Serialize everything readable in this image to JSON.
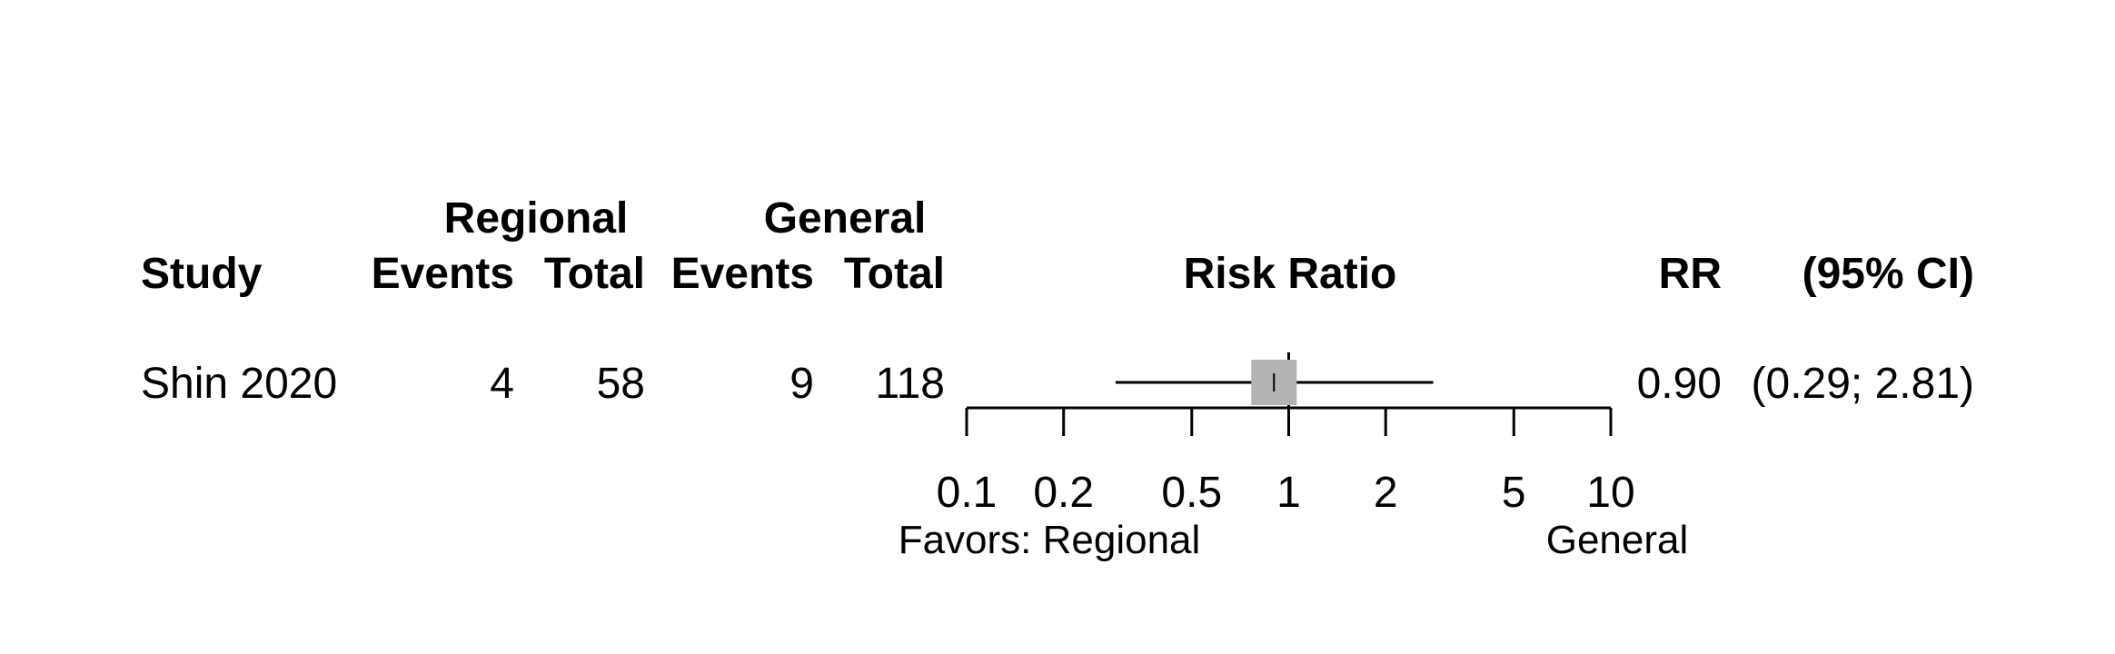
{
  "header": {
    "group1": "Regional",
    "group2": "General",
    "study": "Study",
    "events1": "Events",
    "total1": "Total",
    "events2": "Events",
    "total2": "Total",
    "plot": "Risk Ratio",
    "rr": "RR",
    "ci": "(95% CI)"
  },
  "rows": [
    {
      "study": "Shin 2020",
      "events1": "4",
      "total1": "58",
      "events2": "9",
      "total2": "118",
      "rr": "0.90",
      "ci": "(0.29; 2.81)"
    }
  ],
  "axis_labels": {
    "left": "Favors: Regional",
    "right": "General"
  },
  "colors": {
    "box": "#b4b4b4",
    "line": "#000000"
  },
  "chart_data": {
    "type": "forest",
    "scale": "log",
    "xlim": [
      0.1,
      10
    ],
    "reference_line": 1,
    "ticks": [
      0.1,
      0.2,
      0.5,
      1,
      2,
      5,
      10
    ],
    "tick_labels": [
      "0.1",
      "0.2",
      "0.5",
      "1",
      "2",
      "5",
      "10"
    ],
    "studies": [
      {
        "name": "Shin 2020",
        "estimate": 0.9,
        "lower": 0.29,
        "upper": 2.81
      }
    ]
  }
}
